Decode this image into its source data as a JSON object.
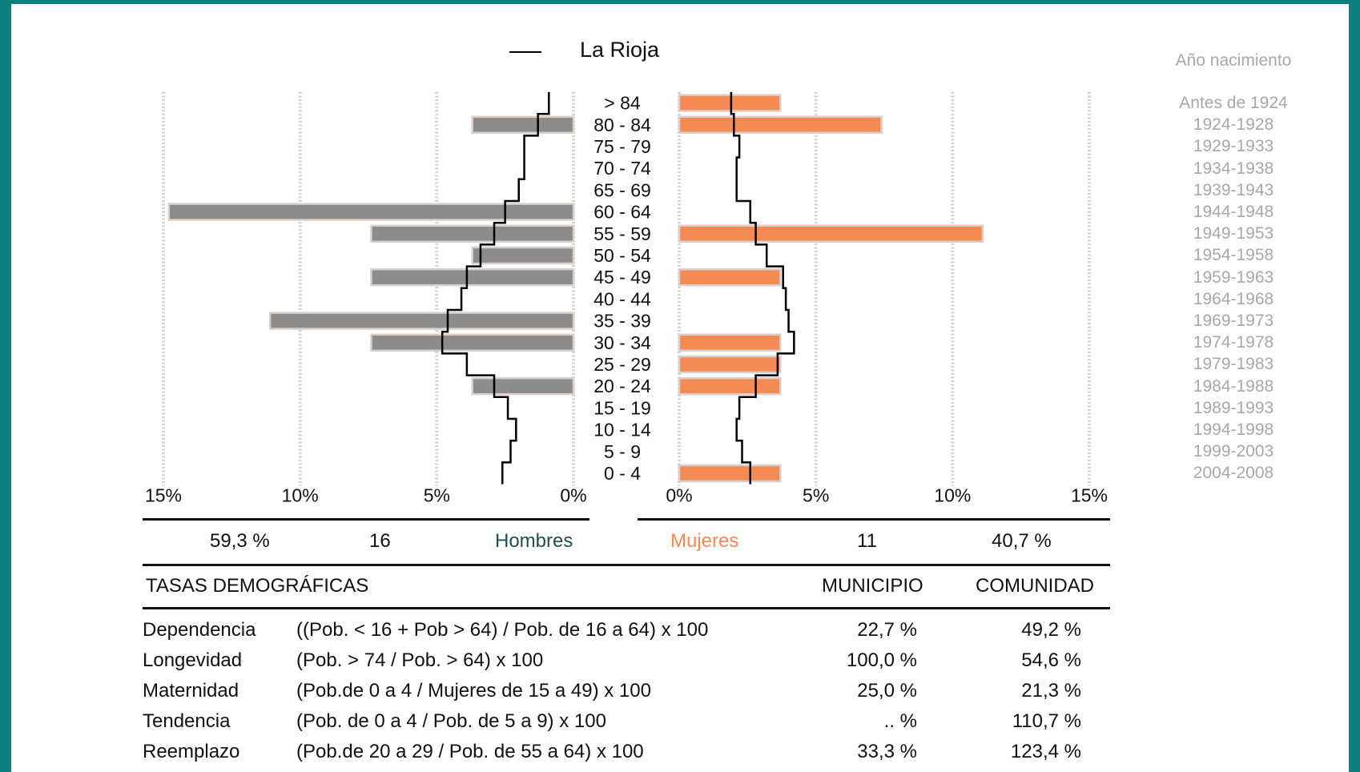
{
  "colors": {
    "frame": "#0d7f7f",
    "male_bar": "#8c8c8c",
    "female_bar": "#f58a55",
    "bar_border": "#d9d1c9",
    "grid": "#d5d0ca",
    "region_line": "#000000",
    "hombres_text": "#1f4f4f",
    "mujeres_text": "#f58a55",
    "years_text": "#a8a8a8"
  },
  "chart_data": {
    "type": "bar",
    "subtype": "population-pyramid",
    "legend": {
      "label": "La Rioja",
      "position": "top-center"
    },
    "age_groups": [
      "> 84",
      "80 - 84",
      "75 - 79",
      "70 - 74",
      "65 - 69",
      "60 - 64",
      "55 - 59",
      "50 - 54",
      "45 - 49",
      "40 - 44",
      "35 - 39",
      "30 - 34",
      "25 - 29",
      "20 - 24",
      "15 - 19",
      "10 - 14",
      "5 - 9",
      "0 - 4"
    ],
    "series": [
      {
        "name": "Hombres",
        "values": [
          0,
          3.7,
          0,
          0,
          0,
          14.8,
          7.4,
          3.7,
          7.4,
          0,
          11.1,
          7.4,
          0,
          3.7,
          0,
          0,
          0,
          0
        ]
      },
      {
        "name": "Mujeres",
        "values": [
          3.7,
          7.4,
          0,
          0,
          0,
          0,
          11.1,
          0,
          3.7,
          0,
          0,
          3.7,
          3.7,
          3.7,
          0,
          0,
          0,
          3.7
        ]
      }
    ],
    "region_male": [
      0.9,
      1.3,
      1.8,
      1.8,
      2.0,
      2.5,
      2.9,
      3.4,
      3.9,
      4.1,
      4.6,
      4.8,
      3.9,
      2.9,
      2.4,
      2.1,
      2.3,
      2.6
    ],
    "region_female": [
      1.9,
      2.0,
      2.2,
      2.1,
      2.1,
      2.6,
      2.8,
      3.2,
      3.8,
      3.9,
      4.0,
      4.2,
      3.6,
      2.8,
      2.2,
      2.1,
      2.3,
      2.6
    ],
    "x_ticks_left": [
      "15%",
      "10%",
      "5%",
      "0%"
    ],
    "x_ticks_right": [
      "0%",
      "5%",
      "10%",
      "15%"
    ],
    "xlim": [
      0,
      15
    ],
    "grid": true
  },
  "legend_label": "La Rioja",
  "years": {
    "header": "Año nacimiento",
    "ranges": [
      "Antes de 1924",
      "1924-1928",
      "1929-1933",
      "1934-1938",
      "1939-1943",
      "1944-1948",
      "1949-1953",
      "1954-1958",
      "1959-1963",
      "1964-1968",
      "1969-1973",
      "1974-1978",
      "1979-1983",
      "1984-1988",
      "1989-1993",
      "1994-1998",
      "1999-2003",
      "2004-2008"
    ]
  },
  "summary": {
    "male_pct": "59,3 %",
    "male_count": "16",
    "male_label": "Hombres",
    "female_label": "Mujeres",
    "female_count": "11",
    "female_pct": "40,7 %"
  },
  "table": {
    "title": "TASAS DEMOGRÁFICAS",
    "col_municipio": "MUNICIPIO",
    "col_comunidad": "COMUNIDAD",
    "rows": [
      {
        "label": "Dependencia",
        "formula": "((Pob. < 16 + Pob > 64) / Pob. de 16 a 64) x 100",
        "municipio": "22,7 %",
        "comunidad": "49,2 %"
      },
      {
        "label": "Longevidad",
        "formula": "(Pob. > 74 / Pob. > 64) x 100",
        "municipio": "100,0 %",
        "comunidad": "54,6 %"
      },
      {
        "label": "Maternidad",
        "formula": "(Pob.de 0 a 4 / Mujeres de 15 a 49) x 100",
        "municipio": "25,0 %",
        "comunidad": "21,3 %"
      },
      {
        "label": "Tendencia",
        "formula": "(Pob. de 0 a 4 / Pob. de 5 a 9) x 100",
        "municipio": ".. %",
        "comunidad": "110,7 %"
      },
      {
        "label": "Reemplazo",
        "formula": "(Pob.de 20 a 29 / Pob. de 55 a 64) x 100",
        "municipio": "33,3 %",
        "comunidad": "123,4 %"
      }
    ]
  }
}
